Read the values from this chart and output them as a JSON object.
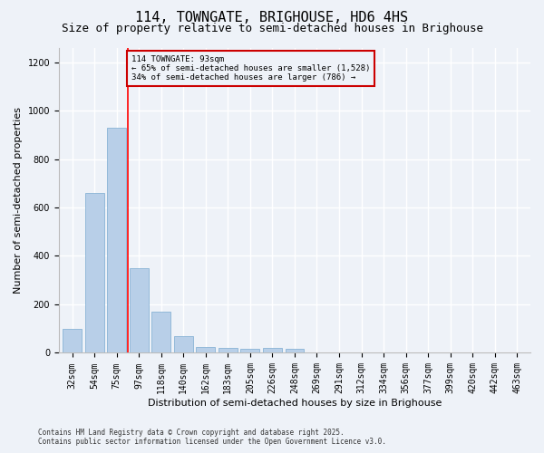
{
  "title": "114, TOWNGATE, BRIGHOUSE, HD6 4HS",
  "subtitle": "Size of property relative to semi-detached houses in Brighouse",
  "xlabel": "Distribution of semi-detached houses by size in Brighouse",
  "ylabel": "Number of semi-detached properties",
  "bar_color": "#b8cfe8",
  "bar_edge_color": "#7aaad0",
  "categories": [
    "32sqm",
    "54sqm",
    "75sqm",
    "97sqm",
    "118sqm",
    "140sqm",
    "162sqm",
    "183sqm",
    "205sqm",
    "226sqm",
    "248sqm",
    "269sqm",
    "291sqm",
    "312sqm",
    "334sqm",
    "356sqm",
    "377sqm",
    "399sqm",
    "420sqm",
    "442sqm",
    "463sqm"
  ],
  "values": [
    100,
    660,
    930,
    350,
    170,
    70,
    25,
    20,
    15,
    20,
    15,
    0,
    0,
    0,
    0,
    0,
    0,
    0,
    0,
    0,
    0
  ],
  "ylim": [
    0,
    1260
  ],
  "yticks": [
    0,
    200,
    400,
    600,
    800,
    1000,
    1200
  ],
  "property_line_x": 2.5,
  "property_label": "114 TOWNGATE: 93sqm",
  "annotation_line1": "← 65% of semi-detached houses are smaller (1,528)",
  "annotation_line2": "34% of semi-detached houses are larger (786) →",
  "footnote1": "Contains HM Land Registry data © Crown copyright and database right 2025.",
  "footnote2": "Contains public sector information licensed under the Open Government Licence v3.0.",
  "bg_color": "#eef2f8",
  "grid_color": "#ffffff",
  "annotation_box_color": "#cc0000",
  "title_fontsize": 11,
  "subtitle_fontsize": 9,
  "tick_fontsize": 7,
  "axis_label_fontsize": 8
}
